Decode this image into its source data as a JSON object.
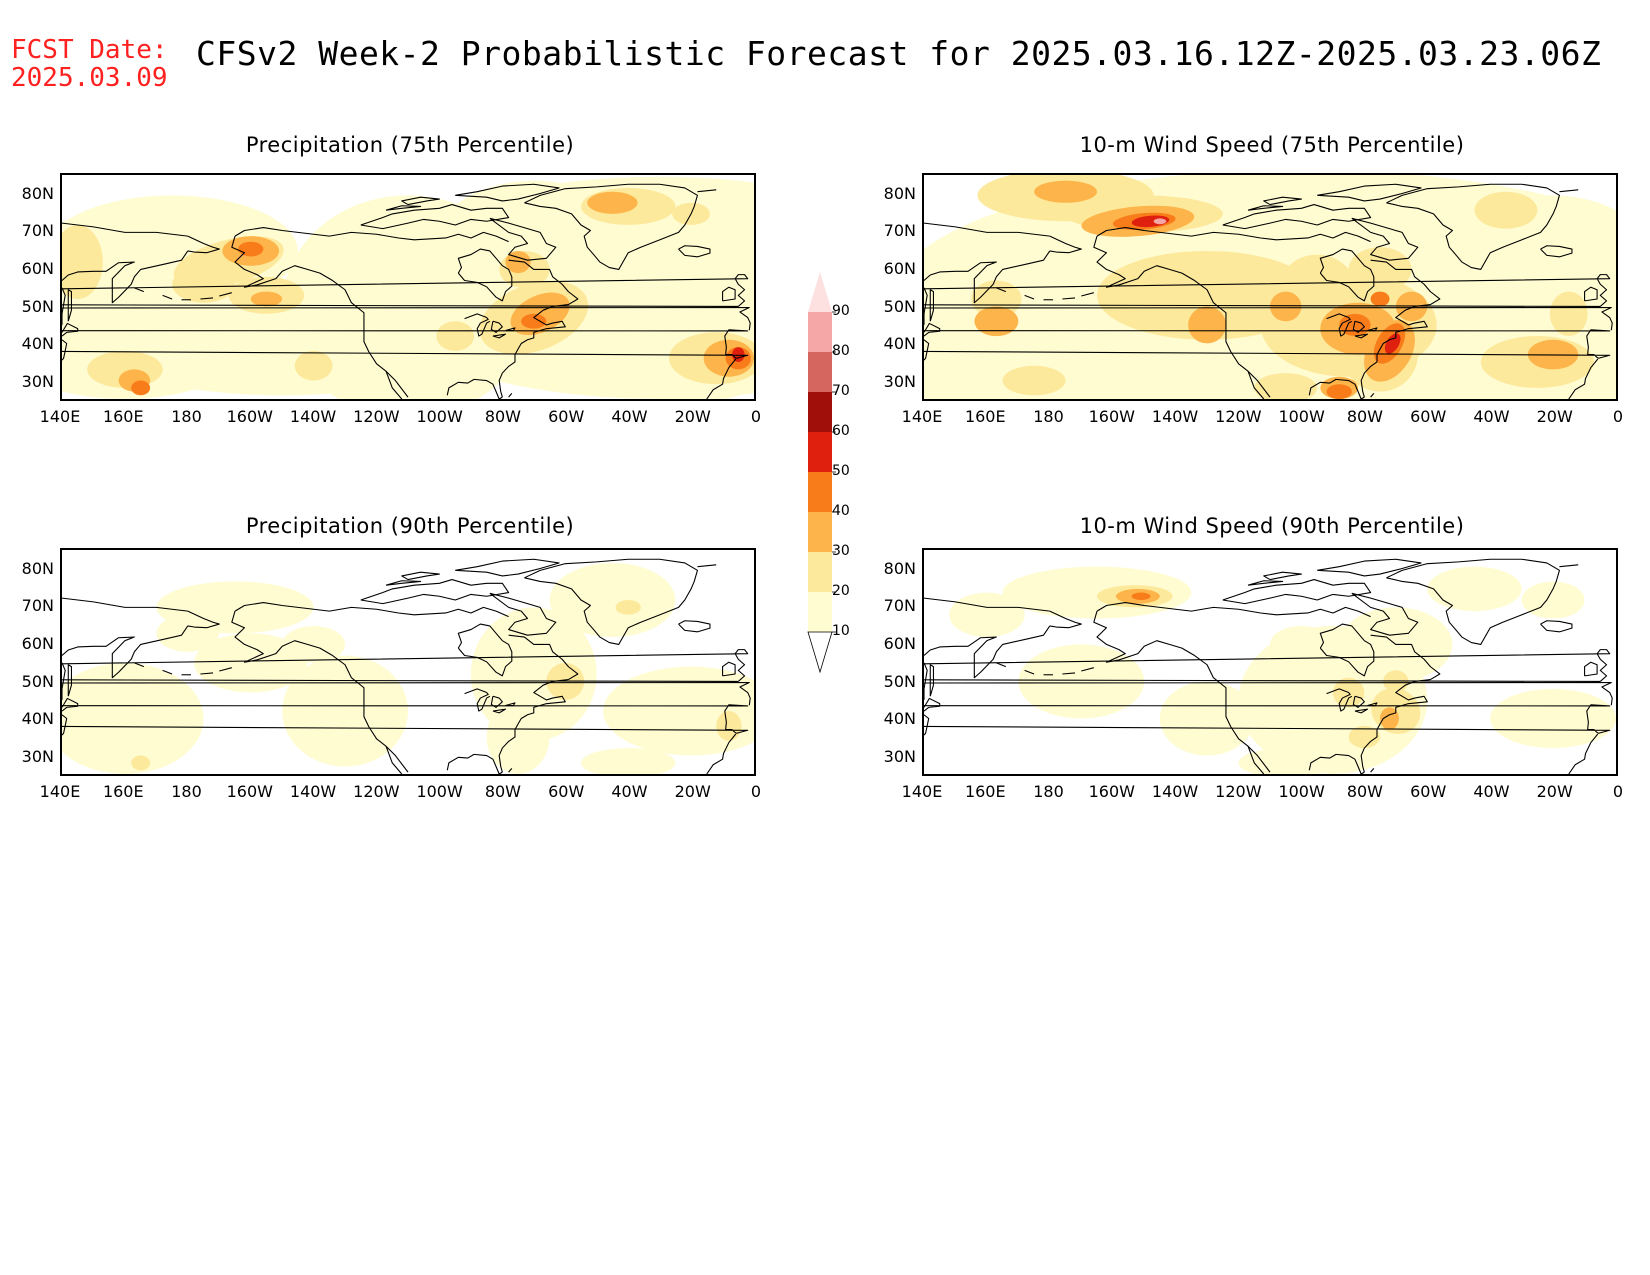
{
  "header": {
    "fcst_label": "FCST Date:",
    "fcst_date": "2025.03.09",
    "title": "CFSv2 Week-2 Probabilistic Forecast for 2025.03.16.12Z-2025.03.23.06Z"
  },
  "axes": {
    "lat_labels": [
      "80N",
      "70N",
      "60N",
      "50N",
      "40N",
      "30N"
    ],
    "lon_labels": [
      "140E",
      "160E",
      "180",
      "160W",
      "140W",
      "120W",
      "100W",
      "80W",
      "60W",
      "40W",
      "20W",
      "0"
    ]
  },
  "panels": [
    {
      "title": "Precipitation (75th Percentile)"
    },
    {
      "title": "10-m Wind Speed (75th Percentile)"
    },
    {
      "title": "Precipitation (90th Percentile)"
    },
    {
      "title": "10-m Wind Speed (90th Percentile)"
    }
  ],
  "legend": {
    "levels": [
      "10",
      "20",
      "30",
      "40",
      "50",
      "60",
      "70",
      "80",
      "90"
    ],
    "colors": [
      "#fffcd2",
      "#fde99b",
      "#fdb44a",
      "#f97c1a",
      "#e0200f",
      "#a10f0a",
      "#d5655f",
      "#f5a6a6",
      "#fde0e0"
    ]
  }
}
